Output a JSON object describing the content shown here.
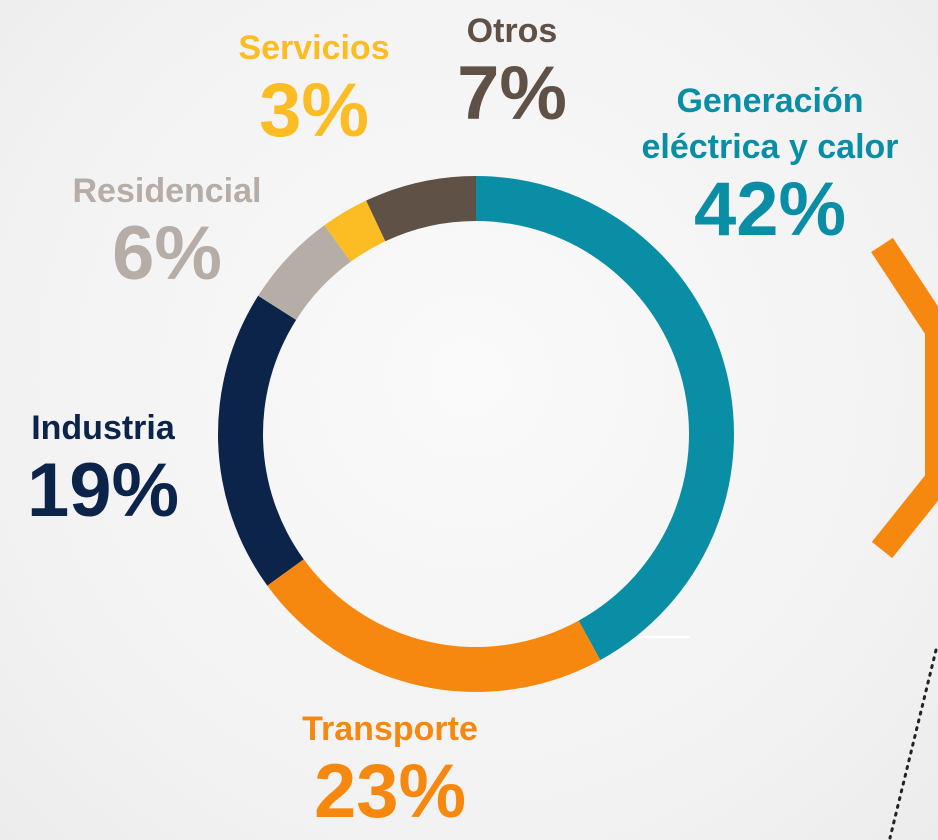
{
  "chart_data": {
    "type": "donut",
    "categories": [
      "Generación eléctrica y calor",
      "Transporte",
      "Industria",
      "Residencial",
      "Servicios",
      "Otros"
    ],
    "values": [
      42,
      23,
      19,
      6,
      3,
      7
    ],
    "value_labels": [
      "42%",
      "23%",
      "19%",
      "6%",
      "3%",
      "7%"
    ],
    "colors": [
      "#0a8ea6",
      "#f7880f",
      "#0c2449",
      "#b5ada6",
      "#fbbd23",
      "#5f5146"
    ]
  }
}
